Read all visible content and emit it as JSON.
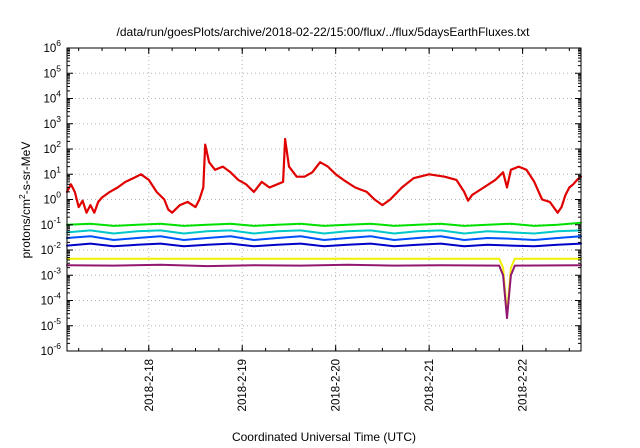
{
  "chart_data": {
    "type": "line",
    "title": "/data/run/goesPlots/archive/2018-02-22/15:00/flux/../flux/5daysEarthFluxes.txt",
    "xlabel": "Coordinated Universal Time (UTC)",
    "ylabel": {
      "prefix": "protons/cm",
      "sup": "2",
      "suffix": "-s-sr-MeV"
    },
    "y_scale": "log",
    "ylim": [
      1e-06,
      1000000.0
    ],
    "y_ticks": [
      {
        "value": 1e-06,
        "base": "10",
        "exp": "-6"
      },
      {
        "value": 1e-05,
        "base": "10",
        "exp": "-5"
      },
      {
        "value": 0.0001,
        "base": "10",
        "exp": "-4"
      },
      {
        "value": 0.001,
        "base": "10",
        "exp": "-3"
      },
      {
        "value": 0.01,
        "base": "10",
        "exp": "-2"
      },
      {
        "value": 0.1,
        "base": "10",
        "exp": "-1"
      },
      {
        "value": 1,
        "base": "10",
        "exp": "0"
      },
      {
        "value": 10,
        "base": "10",
        "exp": "1"
      },
      {
        "value": 100,
        "base": "10",
        "exp": "2"
      },
      {
        "value": 1000,
        "base": "10",
        "exp": "3"
      },
      {
        "value": 10000,
        "base": "10",
        "exp": "4"
      },
      {
        "value": 100000,
        "base": "10",
        "exp": "5"
      },
      {
        "value": 1000000,
        "base": "10",
        "exp": "6"
      }
    ],
    "xlim": [
      "2018-02-17T03:00",
      "2018-02-22T15:00"
    ],
    "x_ticks": [
      {
        "value": "2018-02-18T00:00",
        "label": "2018-2-18"
      },
      {
        "value": "2018-02-19T00:00",
        "label": "2018-2-19"
      },
      {
        "value": "2018-02-20T00:00",
        "label": "2018-2-20"
      },
      {
        "value": "2018-02-21T00:00",
        "label": "2018-2-21"
      },
      {
        "value": "2018-02-22T00:00",
        "label": "2018-2-22"
      }
    ],
    "grid": true,
    "series": [
      {
        "color": "#e00000",
        "points": [
          [
            "2018-02-17T03:00",
            2.0
          ],
          [
            "2018-02-17T04:00",
            4.0
          ],
          [
            "2018-02-17T05:00",
            2.0
          ],
          [
            "2018-02-17T06:00",
            0.5
          ],
          [
            "2018-02-17T07:00",
            0.9
          ],
          [
            "2018-02-17T08:00",
            0.3
          ],
          [
            "2018-02-17T09:00",
            0.6
          ],
          [
            "2018-02-17T10:00",
            0.3
          ],
          [
            "2018-02-17T11:00",
            0.8
          ],
          [
            "2018-02-17T12:00",
            1.2
          ],
          [
            "2018-02-17T14:00",
            2.0
          ],
          [
            "2018-02-17T16:00",
            3.0
          ],
          [
            "2018-02-17T18:00",
            5.0
          ],
          [
            "2018-02-17T20:00",
            7.0
          ],
          [
            "2018-02-17T22:00",
            10.0
          ],
          [
            "2018-02-18T00:00",
            6.0
          ],
          [
            "2018-02-18T02:00",
            2.0
          ],
          [
            "2018-02-18T04:00",
            1.0
          ],
          [
            "2018-02-18T05:00",
            0.4
          ],
          [
            "2018-02-18T06:00",
            0.3
          ],
          [
            "2018-02-18T08:00",
            0.6
          ],
          [
            "2018-02-18T10:00",
            0.8
          ],
          [
            "2018-02-18T12:00",
            0.5
          ],
          [
            "2018-02-18T13:00",
            1.0
          ],
          [
            "2018-02-18T14:00",
            3.0
          ],
          [
            "2018-02-18T14:30",
            150.0
          ],
          [
            "2018-02-18T15:30",
            30.0
          ],
          [
            "2018-02-18T17:00",
            15.0
          ],
          [
            "2018-02-18T19:00",
            20.0
          ],
          [
            "2018-02-18T21:00",
            12.0
          ],
          [
            "2018-02-18T23:00",
            6.0
          ],
          [
            "2018-02-19T01:00",
            4.0
          ],
          [
            "2018-02-19T03:00",
            2.0
          ],
          [
            "2018-02-19T05:00",
            5.0
          ],
          [
            "2018-02-19T07:00",
            3.0
          ],
          [
            "2018-02-19T09:00",
            4.0
          ],
          [
            "2018-02-19T10:30",
            5.0
          ],
          [
            "2018-02-19T11:00",
            250.0
          ],
          [
            "2018-02-19T12:00",
            20.0
          ],
          [
            "2018-02-19T14:00",
            8.0
          ],
          [
            "2018-02-19T16:00",
            8.0
          ],
          [
            "2018-02-19T18:00",
            12.0
          ],
          [
            "2018-02-19T20:00",
            30.0
          ],
          [
            "2018-02-19T22:00",
            20.0
          ],
          [
            "2018-02-20T00:00",
            10.0
          ],
          [
            "2018-02-20T02:00",
            6.0
          ],
          [
            "2018-02-20T05:00",
            3.0
          ],
          [
            "2018-02-20T08:00",
            2.0
          ],
          [
            "2018-02-20T10:00",
            1.0
          ],
          [
            "2018-02-20T12:00",
            0.6
          ],
          [
            "2018-02-20T14:00",
            1.0
          ],
          [
            "2018-02-20T17:00",
            3.0
          ],
          [
            "2018-02-20T20:00",
            7.0
          ],
          [
            "2018-02-21T00:00",
            10.0
          ],
          [
            "2018-02-21T04:00",
            8.0
          ],
          [
            "2018-02-21T07:00",
            6.0
          ],
          [
            "2018-02-21T09:00",
            2.0
          ],
          [
            "2018-02-21T10:00",
            0.9
          ],
          [
            "2018-02-21T11:00",
            1.5
          ],
          [
            "2018-02-21T14:00",
            3.0
          ],
          [
            "2018-02-21T17:00",
            6.0
          ],
          [
            "2018-02-21T19:00",
            12.0
          ],
          [
            "2018-02-21T20:00",
            3.0
          ],
          [
            "2018-02-21T21:00",
            15.0
          ],
          [
            "2018-02-21T23:00",
            20.0
          ],
          [
            "2018-02-22T01:00",
            15.0
          ],
          [
            "2018-02-22T03:00",
            5.0
          ],
          [
            "2018-02-22T05:00",
            1.0
          ],
          [
            "2018-02-22T07:00",
            0.8
          ],
          [
            "2018-02-22T09:00",
            0.3
          ],
          [
            "2018-02-22T10:00",
            0.5
          ],
          [
            "2018-02-22T11:00",
            1.5
          ],
          [
            "2018-02-22T12:00",
            3.0
          ],
          [
            "2018-02-22T13:00",
            4.0
          ],
          [
            "2018-02-22T14:00",
            6.0
          ],
          [
            "2018-02-22T15:00",
            8.0
          ]
        ]
      },
      {
        "color": "#00e000",
        "points": [
          [
            "2018-02-17T03:00",
            0.1
          ],
          [
            "2018-02-17T09:00",
            0.11
          ],
          [
            "2018-02-17T15:00",
            0.09
          ],
          [
            "2018-02-17T21:00",
            0.1
          ],
          [
            "2018-02-18T03:00",
            0.11
          ],
          [
            "2018-02-18T09:00",
            0.09
          ],
          [
            "2018-02-18T15:00",
            0.1
          ],
          [
            "2018-02-18T21:00",
            0.11
          ],
          [
            "2018-02-19T03:00",
            0.09
          ],
          [
            "2018-02-19T09:00",
            0.1
          ],
          [
            "2018-02-19T15:00",
            0.11
          ],
          [
            "2018-02-19T21:00",
            0.09
          ],
          [
            "2018-02-20T03:00",
            0.1
          ],
          [
            "2018-02-20T09:00",
            0.11
          ],
          [
            "2018-02-20T15:00",
            0.09
          ],
          [
            "2018-02-20T21:00",
            0.1
          ],
          [
            "2018-02-21T03:00",
            0.11
          ],
          [
            "2018-02-21T09:00",
            0.09
          ],
          [
            "2018-02-21T15:00",
            0.1
          ],
          [
            "2018-02-21T21:00",
            0.11
          ],
          [
            "2018-02-22T03:00",
            0.09
          ],
          [
            "2018-02-22T09:00",
            0.1
          ],
          [
            "2018-02-22T15:00",
            0.12
          ]
        ]
      },
      {
        "color": "#00c8c8",
        "points": [
          [
            "2018-02-17T03:00",
            0.05
          ],
          [
            "2018-02-17T09:00",
            0.06
          ],
          [
            "2018-02-17T15:00",
            0.045
          ],
          [
            "2018-02-17T21:00",
            0.055
          ],
          [
            "2018-02-18T03:00",
            0.06
          ],
          [
            "2018-02-18T09:00",
            0.045
          ],
          [
            "2018-02-18T15:00",
            0.055
          ],
          [
            "2018-02-18T21:00",
            0.06
          ],
          [
            "2018-02-19T03:00",
            0.045
          ],
          [
            "2018-02-19T09:00",
            0.055
          ],
          [
            "2018-02-19T15:00",
            0.06
          ],
          [
            "2018-02-19T21:00",
            0.045
          ],
          [
            "2018-02-20T03:00",
            0.055
          ],
          [
            "2018-02-20T09:00",
            0.06
          ],
          [
            "2018-02-20T15:00",
            0.045
          ],
          [
            "2018-02-20T21:00",
            0.055
          ],
          [
            "2018-02-21T03:00",
            0.06
          ],
          [
            "2018-02-21T09:00",
            0.045
          ],
          [
            "2018-02-21T15:00",
            0.055
          ],
          [
            "2018-02-21T21:00",
            0.05
          ],
          [
            "2018-02-22T03:00",
            0.045
          ],
          [
            "2018-02-22T09:00",
            0.055
          ],
          [
            "2018-02-22T15:00",
            0.06
          ]
        ]
      },
      {
        "color": "#0050ff",
        "points": [
          [
            "2018-02-17T03:00",
            0.03
          ],
          [
            "2018-02-17T09:00",
            0.035
          ],
          [
            "2018-02-17T15:00",
            0.025
          ],
          [
            "2018-02-17T21:00",
            0.03
          ],
          [
            "2018-02-18T03:00",
            0.035
          ],
          [
            "2018-02-18T09:00",
            0.025
          ],
          [
            "2018-02-18T15:00",
            0.03
          ],
          [
            "2018-02-18T21:00",
            0.035
          ],
          [
            "2018-02-19T03:00",
            0.025
          ],
          [
            "2018-02-19T09:00",
            0.03
          ],
          [
            "2018-02-19T15:00",
            0.035
          ],
          [
            "2018-02-19T21:00",
            0.025
          ],
          [
            "2018-02-20T03:00",
            0.03
          ],
          [
            "2018-02-20T09:00",
            0.035
          ],
          [
            "2018-02-20T15:00",
            0.025
          ],
          [
            "2018-02-20T21:00",
            0.03
          ],
          [
            "2018-02-21T03:00",
            0.035
          ],
          [
            "2018-02-21T09:00",
            0.025
          ],
          [
            "2018-02-21T15:00",
            0.03
          ],
          [
            "2018-02-21T21:00",
            0.028
          ],
          [
            "2018-02-22T03:00",
            0.025
          ],
          [
            "2018-02-22T09:00",
            0.03
          ],
          [
            "2018-02-22T15:00",
            0.035
          ]
        ]
      },
      {
        "color": "#0000c8",
        "points": [
          [
            "2018-02-17T03:00",
            0.015
          ],
          [
            "2018-02-17T09:00",
            0.018
          ],
          [
            "2018-02-17T15:00",
            0.014
          ],
          [
            "2018-02-17T21:00",
            0.016
          ],
          [
            "2018-02-18T03:00",
            0.018
          ],
          [
            "2018-02-18T09:00",
            0.014
          ],
          [
            "2018-02-18T15:00",
            0.016
          ],
          [
            "2018-02-18T21:00",
            0.018
          ],
          [
            "2018-02-19T03:00",
            0.014
          ],
          [
            "2018-02-19T09:00",
            0.016
          ],
          [
            "2018-02-19T15:00",
            0.018
          ],
          [
            "2018-02-19T21:00",
            0.014
          ],
          [
            "2018-02-20T03:00",
            0.016
          ],
          [
            "2018-02-20T09:00",
            0.018
          ],
          [
            "2018-02-20T15:00",
            0.014
          ],
          [
            "2018-02-20T21:00",
            0.016
          ],
          [
            "2018-02-21T03:00",
            0.018
          ],
          [
            "2018-02-21T09:00",
            0.014
          ],
          [
            "2018-02-21T15:00",
            0.016
          ],
          [
            "2018-02-21T21:00",
            0.015
          ],
          [
            "2018-02-22T03:00",
            0.014
          ],
          [
            "2018-02-22T09:00",
            0.016
          ],
          [
            "2018-02-22T15:00",
            0.018
          ]
        ]
      },
      {
        "color": "#f0f000",
        "points": [
          [
            "2018-02-17T03:00",
            0.0045
          ],
          [
            "2018-02-18T03:00",
            0.0045
          ],
          [
            "2018-02-19T03:00",
            0.0045
          ],
          [
            "2018-02-20T03:00",
            0.0045
          ],
          [
            "2018-02-21T03:00",
            0.0045
          ],
          [
            "2018-02-21T18:00",
            0.0045
          ],
          [
            "2018-02-21T19:00",
            0.002
          ],
          [
            "2018-02-21T20:00",
            3e-05
          ],
          [
            "2018-02-21T21:00",
            0.002
          ],
          [
            "2018-02-21T22:00",
            0.0045
          ],
          [
            "2018-02-22T15:00",
            0.0045
          ]
        ]
      },
      {
        "color": "#901870",
        "points": [
          [
            "2018-02-17T03:00",
            0.0025
          ],
          [
            "2018-02-17T15:00",
            0.0024
          ],
          [
            "2018-02-18T03:00",
            0.0026
          ],
          [
            "2018-02-18T15:00",
            0.0023
          ],
          [
            "2018-02-19T03:00",
            0.0025
          ],
          [
            "2018-02-19T15:00",
            0.0024
          ],
          [
            "2018-02-20T03:00",
            0.0026
          ],
          [
            "2018-02-20T15:00",
            0.0024
          ],
          [
            "2018-02-21T03:00",
            0.0025
          ],
          [
            "2018-02-21T18:00",
            0.0024
          ],
          [
            "2018-02-21T19:00",
            0.001
          ],
          [
            "2018-02-21T20:00",
            2e-05
          ],
          [
            "2018-02-21T21:00",
            0.001
          ],
          [
            "2018-02-21T22:00",
            0.0024
          ],
          [
            "2018-02-22T15:00",
            0.0025
          ]
        ]
      }
    ]
  }
}
